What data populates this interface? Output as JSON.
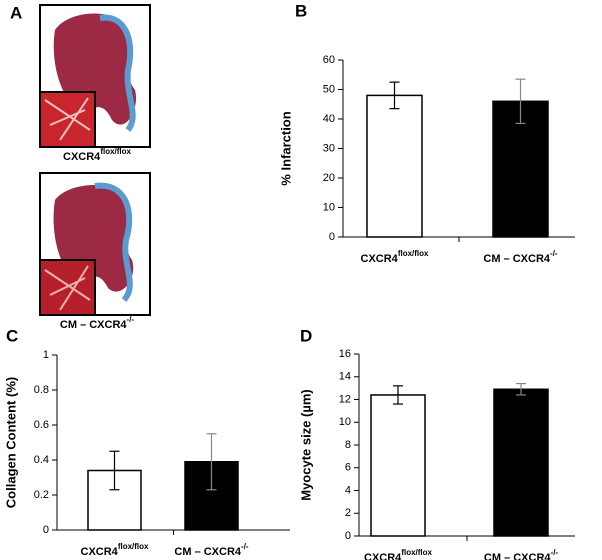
{
  "image_panel": {
    "panel_label": "A",
    "captions": [
      {
        "text": "CXCR4",
        "sup": "flox/flox"
      },
      {
        "text": "CM – CXCR4",
        "sup": "-/-"
      }
    ]
  },
  "chart_data": [
    {
      "type": "bar",
      "panel_label": "B",
      "ylabel": "% Infarction",
      "categories": [
        "CXCR4",
        "CM – CXCR4"
      ],
      "category_superscripts": [
        "flox/flox",
        "-/-"
      ],
      "values": [
        48,
        46
      ],
      "errors": [
        4.5,
        7.5
      ],
      "colors": [
        "#ffffff",
        "#000000"
      ],
      "ylim": [
        0,
        60
      ],
      "yticks": [
        0,
        10,
        20,
        30,
        40,
        50,
        60
      ]
    },
    {
      "type": "bar",
      "panel_label": "C",
      "ylabel": "Collagen Content (%)",
      "categories": [
        "CXCR4",
        "CM – CXCR4"
      ],
      "category_superscripts": [
        "flox/flox",
        "-/-"
      ],
      "values": [
        0.34,
        0.39
      ],
      "errors": [
        0.11,
        0.16
      ],
      "colors": [
        "#ffffff",
        "#000000"
      ],
      "ylim": [
        0,
        1
      ],
      "yticks": [
        0,
        0.2,
        0.4,
        0.6,
        0.8,
        1
      ]
    },
    {
      "type": "bar",
      "panel_label": "D",
      "ylabel": "Myocyte size (µm)",
      "categories": [
        "CXCR4",
        "CM – CXCR4"
      ],
      "category_superscripts": [
        "flox/flox",
        "-/-"
      ],
      "values": [
        12.4,
        12.9
      ],
      "errors": [
        0.8,
        0.5
      ],
      "colors": [
        "#ffffff",
        "#000000"
      ],
      "ylim": [
        0,
        16
      ],
      "yticks": [
        0,
        2,
        4,
        6,
        8,
        10,
        12,
        14,
        16
      ]
    }
  ]
}
